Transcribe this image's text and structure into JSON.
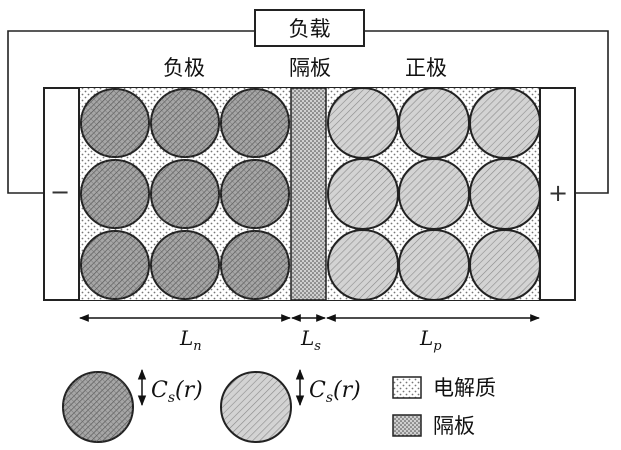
{
  "load_label": "负载",
  "regions": {
    "negative": "负极",
    "separator": "隔板",
    "positive": "正极"
  },
  "terminals": {
    "negative": "−",
    "positive": "+"
  },
  "dimensions": {
    "negative": {
      "main": "L",
      "sub": "n"
    },
    "separator": {
      "main": "L",
      "sub": "s"
    },
    "positive": {
      "main": "L",
      "sub": "p"
    }
  },
  "particle_concentration": {
    "main": "C",
    "sub": "s",
    "arg": "(r)"
  },
  "legend": {
    "electrolyte": "电解质",
    "separator": "隔板"
  },
  "colors": {
    "negative_particle": "#a6a6a6",
    "positive_particle": "#d3d3d3",
    "separator_fill": "#cfcfcf",
    "outline": "#222222"
  }
}
